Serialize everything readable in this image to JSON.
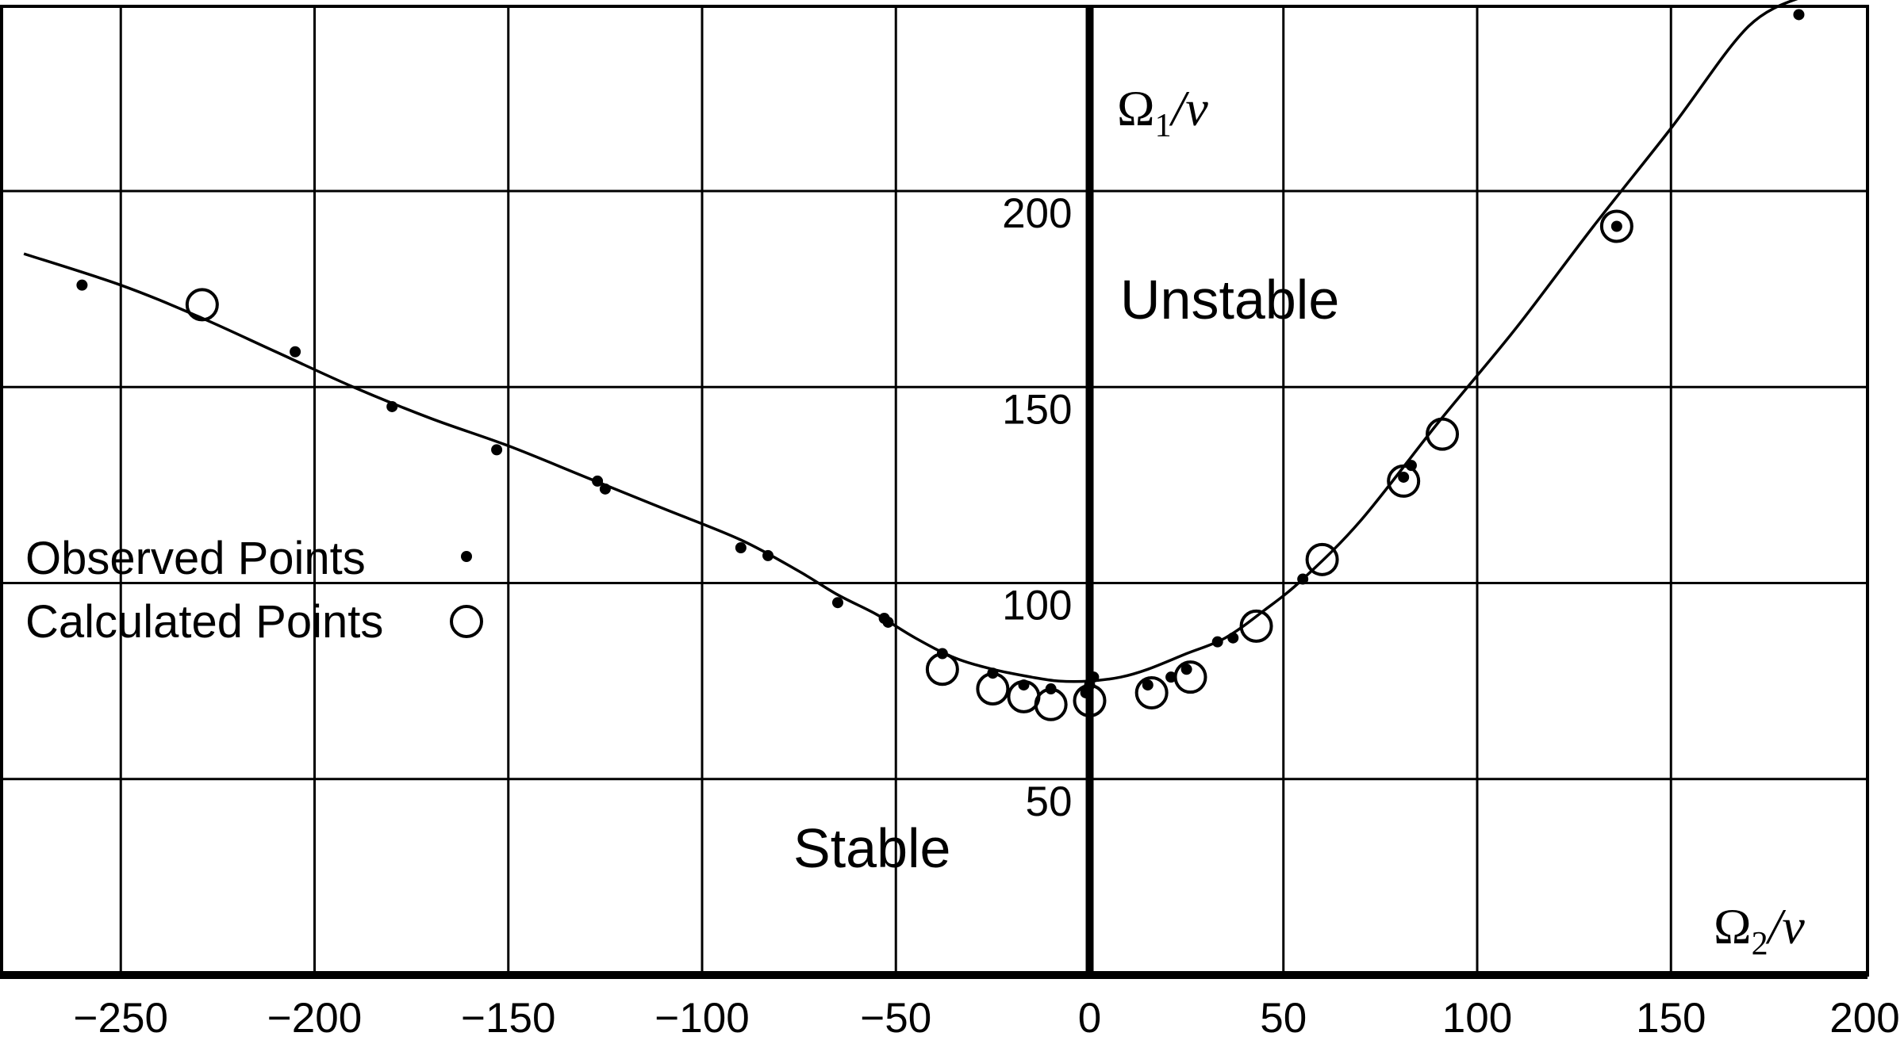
{
  "chart_data": {
    "type": "scatter",
    "xlabel": {
      "base": "Ω",
      "sub": "2",
      "tail": "/ν"
    },
    "ylabel": {
      "base": "Ω",
      "sub": "1",
      "tail": "/ν"
    },
    "xlim": [
      -275,
      200
    ],
    "ylim": [
      0,
      250
    ],
    "x_ticks": [
      -250,
      -200,
      -150,
      -100,
      -50,
      0,
      50,
      100,
      150,
      200
    ],
    "x_tick_labels": [
      "−250",
      "−200",
      "−150",
      "−100",
      "−50",
      "0",
      "50",
      "100",
      "150",
      "200"
    ],
    "y_ticks": [
      50,
      100,
      150,
      200
    ],
    "y_tick_labels": [
      "50",
      "100",
      "150",
      "200"
    ],
    "grid": true,
    "annotations": {
      "unstable": "Unstable",
      "stable": "Stable"
    },
    "legend": {
      "placement": "left",
      "entries": [
        {
          "label": "Observed Points",
          "marker": "dot"
        },
        {
          "label": "Calculated Points",
          "marker": "circle"
        }
      ]
    },
    "curve": {
      "x": [
        -275,
        -250,
        -230,
        -210,
        -190,
        -170,
        -150,
        -130,
        -110,
        -90,
        -75,
        -65,
        -55,
        -45,
        -35,
        -25,
        -15,
        -8,
        0,
        8,
        15,
        25,
        35,
        45,
        55,
        70,
        90,
        110,
        130,
        150,
        170,
        185
      ],
      "y": [
        184,
        176,
        168,
        159,
        150,
        142,
        135,
        127,
        119,
        111,
        103,
        97,
        92,
        86,
        81,
        78,
        76,
        75,
        75,
        76,
        78,
        82,
        86,
        93,
        101,
        116,
        141,
        165,
        191,
        216,
        242,
        250
      ]
    },
    "series": [
      {
        "name": "Observed Points",
        "marker": "dot",
        "x": [
          -260,
          -205,
          -180,
          -153,
          -127,
          -125,
          -90,
          -83,
          -65,
          -53,
          -52,
          -38,
          -25,
          -17,
          -10,
          -1,
          0,
          1,
          15,
          21,
          25,
          33,
          37,
          55,
          81,
          83,
          136,
          183
        ],
        "y": [
          176,
          159,
          145,
          134,
          126,
          124,
          109,
          107,
          95,
          91,
          90,
          82,
          77,
          74,
          73,
          72,
          74,
          76,
          74,
          76,
          78,
          85,
          86,
          101,
          127,
          130,
          191,
          245
        ]
      },
      {
        "name": "Calculated Points",
        "marker": "circle",
        "x": [
          -229,
          -38,
          -25,
          -17,
          -10,
          0,
          16,
          26,
          43,
          60,
          81,
          91,
          136
        ],
        "y": [
          171,
          78,
          73,
          71,
          69,
          70,
          72,
          76,
          89,
          106,
          126,
          138,
          191
        ]
      }
    ]
  }
}
